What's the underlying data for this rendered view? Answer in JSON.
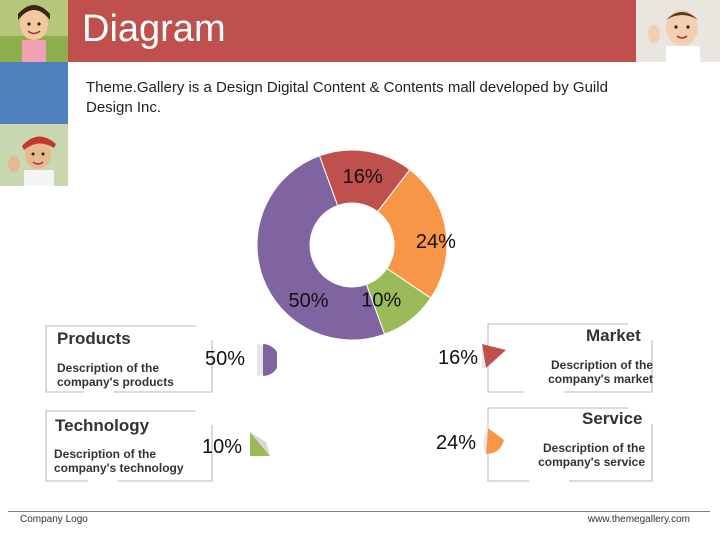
{
  "header": {
    "title": "Diagram"
  },
  "intro": {
    "text": "Theme.Gallery  is a Design Digital Content & Contents mall developed by Guild Design Inc."
  },
  "chart_data": {
    "type": "pie",
    "style": "donut",
    "title": "",
    "slices": [
      {
        "name": "Market",
        "label": "16%",
        "value": 16,
        "color": "#c0504d"
      },
      {
        "name": "Service",
        "label": "24%",
        "value": 24,
        "color": "#f79646"
      },
      {
        "name": "Technology",
        "label": "10%",
        "value": 10,
        "color": "#9bbb59"
      },
      {
        "name": "Products",
        "label": "50%",
        "value": 50,
        "color": "#8064a2"
      }
    ]
  },
  "boxes": {
    "products": {
      "title": "Products",
      "desc": "Description of the company's products",
      "value": "50%"
    },
    "technology": {
      "title": "Technology",
      "desc": "Description of the company's technology",
      "value": "10%"
    },
    "market": {
      "title": "Market",
      "desc": "Description of the company's market",
      "value": "16%"
    },
    "service": {
      "title": "Service",
      "desc": "Description of the company's service",
      "value": "24%"
    }
  },
  "footer": {
    "logo": "Company Logo",
    "site": "www.themegallery.com"
  },
  "colors": {
    "header": "#c0504d",
    "accent_blue": "#4f81bd",
    "market": "#c0504d",
    "service": "#f79646",
    "technology": "#9bbb59",
    "products": "#8064a2"
  }
}
